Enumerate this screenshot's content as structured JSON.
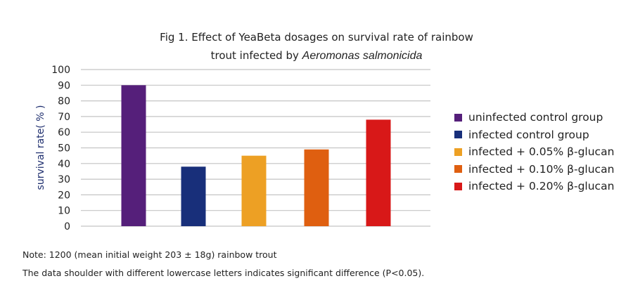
{
  "title_line1": "Fig 1. Effect of YeaBeta dosages on survival rate of rainbow",
  "title_line2_prefix": "trout infected by ",
  "title_line2_italic": "Aeromonas salmonicida",
  "chart_data": {
    "type": "bar",
    "ylabel": "survival rate( % )",
    "xlabel": "",
    "ylim": [
      0,
      100
    ],
    "yticks": [
      0,
      10,
      20,
      30,
      40,
      50,
      60,
      70,
      80,
      90,
      100
    ],
    "grid": true,
    "legend_placement": "right",
    "categories": [
      "uninfected control group",
      "infected control group",
      "infected + 0.05% β-glucan",
      "infected + 0.10% β-glucan",
      "infected + 0.20% β-glucan"
    ],
    "values": [
      90,
      38,
      45,
      49,
      68
    ],
    "colors": [
      "#551f7a",
      "#182f7a",
      "#eda024",
      "#df5f10",
      "#d81818"
    ]
  },
  "notes": [
    "Note: 1200 (mean initial weight 203 ± 18g) rainbow trout",
    "The data shoulder with different lowercase letters indicates significant difference (P<0.05)."
  ]
}
